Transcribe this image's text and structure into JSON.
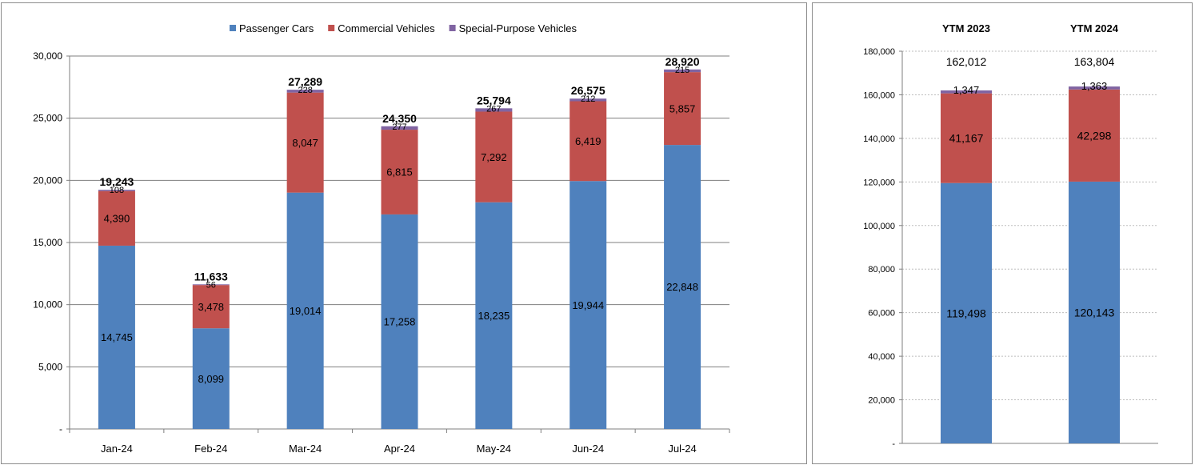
{
  "colors": {
    "passenger": "#4f81bd",
    "commercial": "#c0504d",
    "special": "#8064a2"
  },
  "chart_data": [
    {
      "type": "bar",
      "stacked": true,
      "legend_position": "top",
      "categories": [
        "Jan-24",
        "Feb-24",
        "Mar-24",
        "Apr-24",
        "May-24",
        "Jun-24",
        "Jul-24"
      ],
      "series": [
        {
          "name": "Passenger Cars",
          "values": [
            14745,
            8099,
            19014,
            17258,
            18235,
            19944,
            22848
          ]
        },
        {
          "name": "Commercial Vehicles",
          "values": [
            4390,
            3478,
            8047,
            6815,
            7292,
            6419,
            5857
          ]
        },
        {
          "name": "Special-Purpose Vehicles",
          "values": [
            108,
            56,
            228,
            277,
            267,
            212,
            215
          ]
        }
      ],
      "totals": [
        19243,
        11633,
        27289,
        24350,
        25794,
        26575,
        28920
      ],
      "series_labels": [
        [
          "14,745",
          "8,099",
          "19,014",
          "17,258",
          "18,235",
          "19,944",
          "22,848"
        ],
        [
          "4,390",
          "3,478",
          "8,047",
          "6,815",
          "7,292",
          "6,419",
          "5,857"
        ],
        [
          "108",
          "56",
          "228",
          "277",
          "267",
          "212",
          "215"
        ]
      ],
      "total_labels": [
        "19,243",
        "11,633",
        "27,289",
        "24,350",
        "25,794",
        "26,575",
        "28,920"
      ],
      "ylim": [
        0,
        30000
      ],
      "yticks": [
        "-",
        "5,000",
        "10,000",
        "15,000",
        "20,000",
        "25,000",
        "30,000"
      ],
      "grid": true
    },
    {
      "type": "bar",
      "stacked": true,
      "categories": [
        "YTM 2023",
        "YTM 2024"
      ],
      "series": [
        {
          "name": "Passenger Cars",
          "values": [
            119498,
            120143
          ]
        },
        {
          "name": "Commercial Vehicles",
          "values": [
            41167,
            42298
          ]
        },
        {
          "name": "Special-Purpose Vehicles",
          "values": [
            1347,
            1363
          ]
        }
      ],
      "totals": [
        162012,
        163804
      ],
      "series_labels": [
        [
          "119,498",
          "120,143"
        ],
        [
          "41,167",
          "42,298"
        ],
        [
          "1,347",
          "1,363"
        ]
      ],
      "total_labels": [
        "162,012",
        "163,804"
      ],
      "ylim": [
        0,
        180000
      ],
      "yticks": [
        "-",
        "20,000",
        "40,000",
        "60,000",
        "80,000",
        "100,000",
        "120,000",
        "140,000",
        "160,000",
        "180,000"
      ],
      "grid": true
    }
  ]
}
